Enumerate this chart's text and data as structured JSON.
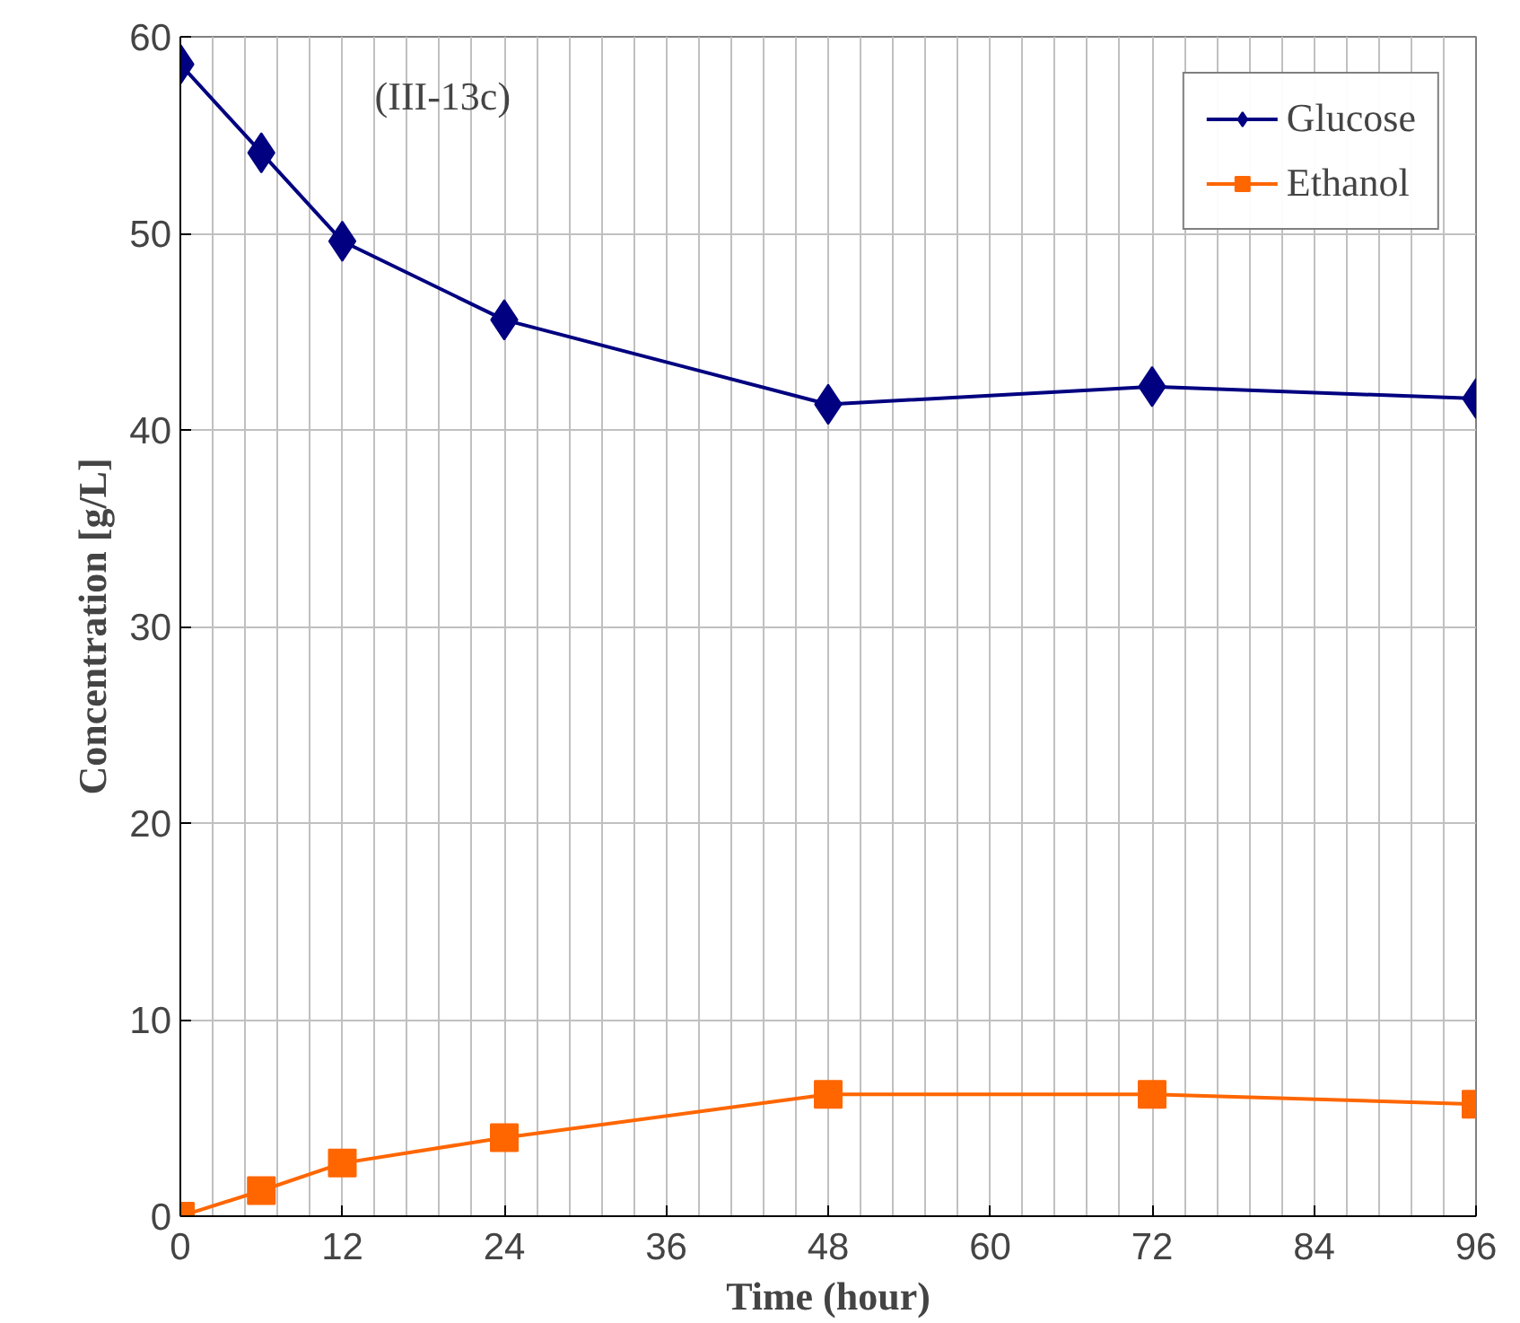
{
  "chart_data": {
    "type": "line",
    "xlabel": "Time (hour)",
    "ylabel": "Concentration [g/L]",
    "annotations": [
      "(III-13c)"
    ],
    "x": [
      0,
      6,
      12,
      24,
      48,
      72,
      96
    ],
    "series": [
      {
        "name": "Glucose",
        "color": "#000080",
        "marker": "diamond",
        "values": [
          58.6,
          54.1,
          49.6,
          45.6,
          41.3,
          42.2,
          41.6
        ]
      },
      {
        "name": "Ethanol",
        "color": "#ff6600",
        "marker": "square",
        "values": [
          0,
          1.3,
          2.7,
          4.0,
          6.2,
          6.2,
          5.7
        ]
      }
    ],
    "xlim": [
      0,
      96
    ],
    "xticks": [
      0,
      12,
      24,
      36,
      48,
      60,
      72,
      84,
      96
    ],
    "ylim": [
      0,
      60
    ],
    "yticks": [
      0,
      10,
      20,
      30,
      40,
      50,
      60
    ],
    "grid": true,
    "legend": "top right",
    "line_style": "solid"
  }
}
